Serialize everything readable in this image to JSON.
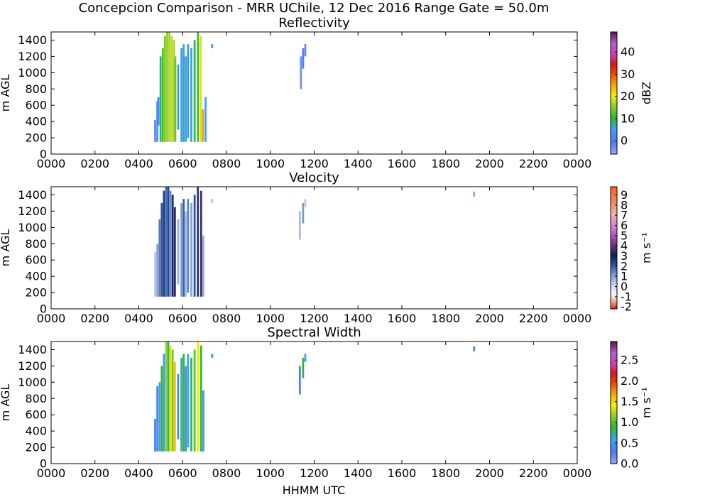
{
  "title": "Concepcion Comparison - MRR UChile, 12 Dec 2016 Range Gate = 50.0m",
  "xlabel": "HHMM UTC",
  "chart_data": [
    {
      "type": "heatmap",
      "title": "Reflectivity",
      "ylabel": "m AGL",
      "xticks": [
        "0000",
        "0200",
        "0400",
        "0600",
        "0800",
        "1000",
        "1200",
        "1400",
        "1600",
        "1800",
        "2000",
        "2200",
        "0000"
      ],
      "yticks": [
        "0",
        "200",
        "400",
        "600",
        "800",
        "1000",
        "1200",
        "1400"
      ],
      "xlim_hours": [
        0,
        24
      ],
      "ylim": [
        0,
        1500
      ],
      "colorbar": {
        "label": "dBZ",
        "range": [
          -6,
          49
        ],
        "ticks": [
          "0",
          "10",
          "20",
          "30",
          "40"
        ],
        "tick_values": [
          0,
          10,
          20,
          30,
          40
        ]
      },
      "cells": [
        {
          "t": 4.7,
          "z0": 150,
          "z1": 420,
          "v": -2
        },
        {
          "t": 4.8,
          "z0": 150,
          "z1": 650,
          "v": 3
        },
        {
          "t": 4.85,
          "z0": 350,
          "z1": 700,
          "v": -1
        },
        {
          "t": 4.95,
          "z0": 150,
          "z1": 1200,
          "v": 8
        },
        {
          "t": 5.05,
          "z0": 150,
          "z1": 1300,
          "v": 12
        },
        {
          "t": 5.15,
          "z0": 150,
          "z1": 1450,
          "v": 15
        },
        {
          "t": 5.25,
          "z0": 150,
          "z1": 1500,
          "v": 16
        },
        {
          "t": 5.35,
          "z0": 150,
          "z1": 1500,
          "v": 17
        },
        {
          "t": 5.45,
          "z0": 150,
          "z1": 1450,
          "v": 18
        },
        {
          "t": 5.55,
          "z0": 150,
          "z1": 1400,
          "v": 17
        },
        {
          "t": 5.62,
          "z0": 150,
          "z1": 1200,
          "v": 14
        },
        {
          "t": 5.75,
          "z0": 300,
          "z1": 1100,
          "v": 6
        },
        {
          "t": 5.9,
          "z0": 150,
          "z1": 1300,
          "v": 4
        },
        {
          "t": 6.0,
          "z0": 150,
          "z1": 1350,
          "v": 7
        },
        {
          "t": 6.1,
          "z0": 150,
          "z1": 1200,
          "v": 5
        },
        {
          "t": 6.2,
          "z0": 200,
          "z1": 1350,
          "v": 3
        },
        {
          "t": 6.35,
          "z0": 150,
          "z1": 1300,
          "v": 6
        },
        {
          "t": 6.5,
          "z0": 150,
          "z1": 1400,
          "v": 9
        },
        {
          "t": 6.65,
          "z0": 150,
          "z1": 1500,
          "v": 12
        },
        {
          "t": 6.78,
          "z0": 150,
          "z1": 1450,
          "v": 19
        },
        {
          "t": 6.88,
          "z0": 150,
          "z1": 550,
          "v": 26
        },
        {
          "t": 7.0,
          "z0": 150,
          "z1": 700,
          "v": 5
        },
        {
          "t": 7.3,
          "z0": 1300,
          "z1": 1350,
          "v": 2
        },
        {
          "t": 11.35,
          "z0": 800,
          "z1": 1200,
          "v": -3
        },
        {
          "t": 11.45,
          "z0": 1050,
          "z1": 1300,
          "v": 0
        },
        {
          "t": 11.55,
          "z0": 1200,
          "z1": 1350,
          "v": -2
        }
      ]
    },
    {
      "type": "heatmap",
      "title": "Velocity",
      "ylabel": "m AGL",
      "xticks": [
        "0000",
        "0200",
        "0400",
        "0600",
        "0800",
        "1000",
        "1200",
        "1400",
        "1600",
        "1800",
        "2000",
        "2200",
        "0000"
      ],
      "yticks": [
        "0",
        "200",
        "400",
        "600",
        "800",
        "1000",
        "1200",
        "1400"
      ],
      "xlim_hours": [
        0,
        24
      ],
      "ylim": [
        0,
        1500
      ],
      "colorbar": {
        "label": "m s⁻¹",
        "range": [
          -2.2,
          9.8
        ],
        "ticks": [
          "-2",
          "-1",
          "0",
          "1",
          "2",
          "3",
          "4",
          "5",
          "6",
          "7",
          "8",
          "9"
        ],
        "tick_values": [
          -2,
          -1,
          0,
          1,
          2,
          3,
          4,
          5,
          6,
          7,
          8,
          9
        ]
      },
      "cells": [
        {
          "t": 4.7,
          "z0": 150,
          "z1": 700,
          "v": 0.4
        },
        {
          "t": 4.8,
          "z0": 150,
          "z1": 800,
          "v": 1.0
        },
        {
          "t": 4.9,
          "z0": 150,
          "z1": 1100,
          "v": 1.6
        },
        {
          "t": 5.0,
          "z0": 150,
          "z1": 1300,
          "v": 2.2
        },
        {
          "t": 5.1,
          "z0": 150,
          "z1": 1450,
          "v": 2.6
        },
        {
          "t": 5.2,
          "z0": 150,
          "z1": 1500,
          "v": 1.8
        },
        {
          "t": 5.3,
          "z0": 150,
          "z1": 1500,
          "v": 2.4
        },
        {
          "t": 5.4,
          "z0": 150,
          "z1": 1450,
          "v": 1.4
        },
        {
          "t": 5.5,
          "z0": 150,
          "z1": 1400,
          "v": 2.8
        },
        {
          "t": 5.6,
          "z0": 150,
          "z1": 1250,
          "v": 3.4
        },
        {
          "t": 5.75,
          "z0": 300,
          "z1": 1100,
          "v": 0.8
        },
        {
          "t": 5.9,
          "z0": 150,
          "z1": 1300,
          "v": 1.2
        },
        {
          "t": 6.0,
          "z0": 150,
          "z1": 1350,
          "v": 2.0
        },
        {
          "t": 6.1,
          "z0": 150,
          "z1": 1200,
          "v": 0.6
        },
        {
          "t": 6.2,
          "z0": 200,
          "z1": 1350,
          "v": 1.5
        },
        {
          "t": 6.35,
          "z0": 150,
          "z1": 1300,
          "v": 1.0
        },
        {
          "t": 6.5,
          "z0": 150,
          "z1": 1400,
          "v": 2.2
        },
        {
          "t": 6.65,
          "z0": 150,
          "z1": 1500,
          "v": 2.6
        },
        {
          "t": 6.8,
          "z0": 150,
          "z1": 1450,
          "v": 3.6
        },
        {
          "t": 6.9,
          "z0": 150,
          "z1": 900,
          "v": 0.8
        },
        {
          "t": 7.3,
          "z0": 1300,
          "z1": 1350,
          "v": 0.5
        },
        {
          "t": 11.3,
          "z0": 850,
          "z1": 1200,
          "v": 0.6
        },
        {
          "t": 11.45,
          "z0": 1050,
          "z1": 1300,
          "v": 1.2
        },
        {
          "t": 11.55,
          "z0": 1250,
          "z1": 1350,
          "v": 0.3
        },
        {
          "t": 19.25,
          "z0": 1380,
          "z1": 1440,
          "v": 1.0
        }
      ]
    },
    {
      "type": "heatmap",
      "title": "Spectral Width",
      "ylabel": "m AGL",
      "xticks": [
        "0000",
        "0200",
        "0400",
        "0600",
        "0800",
        "1000",
        "1200",
        "1400",
        "1600",
        "1800",
        "2000",
        "2200",
        "0000"
      ],
      "yticks": [
        "0",
        "200",
        "400",
        "600",
        "800",
        "1000",
        "1200",
        "1400"
      ],
      "xlim_hours": [
        0,
        24
      ],
      "ylim": [
        0,
        1500
      ],
      "colorbar": {
        "label": "m s⁻¹",
        "range": [
          0,
          2.95
        ],
        "ticks": [
          "0.0",
          "0.5",
          "1.0",
          "1.5",
          "2.0",
          "2.5"
        ],
        "tick_values": [
          0,
          0.5,
          1.0,
          1.5,
          2.0,
          2.5
        ]
      },
      "cells": [
        {
          "t": 4.7,
          "z0": 150,
          "z1": 550,
          "v": 0.3
        },
        {
          "t": 4.8,
          "z0": 150,
          "z1": 950,
          "v": 0.4
        },
        {
          "t": 4.9,
          "z0": 150,
          "z1": 1000,
          "v": 0.6
        },
        {
          "t": 5.0,
          "z0": 150,
          "z1": 1200,
          "v": 0.9
        },
        {
          "t": 5.1,
          "z0": 150,
          "z1": 1350,
          "v": 0.5
        },
        {
          "t": 5.2,
          "z0": 150,
          "z1": 1500,
          "v": 1.2
        },
        {
          "t": 5.3,
          "z0": 150,
          "z1": 1500,
          "v": 0.8
        },
        {
          "t": 5.4,
          "z0": 150,
          "z1": 1450,
          "v": 1.5
        },
        {
          "t": 5.5,
          "z0": 150,
          "z1": 1400,
          "v": 1.1
        },
        {
          "t": 5.6,
          "z0": 150,
          "z1": 1250,
          "v": 1.6
        },
        {
          "t": 5.75,
          "z0": 300,
          "z1": 1100,
          "v": 0.4
        },
        {
          "t": 5.9,
          "z0": 150,
          "z1": 1300,
          "v": 0.7
        },
        {
          "t": 6.0,
          "z0": 150,
          "z1": 1350,
          "v": 0.9
        },
        {
          "t": 6.1,
          "z0": 150,
          "z1": 1200,
          "v": 0.4
        },
        {
          "t": 6.2,
          "z0": 200,
          "z1": 1350,
          "v": 0.6
        },
        {
          "t": 6.35,
          "z0": 150,
          "z1": 1300,
          "v": 0.8
        },
        {
          "t": 6.5,
          "z0": 150,
          "z1": 1400,
          "v": 1.0
        },
        {
          "t": 6.65,
          "z0": 150,
          "z1": 1500,
          "v": 1.4
        },
        {
          "t": 6.8,
          "z0": 150,
          "z1": 1450,
          "v": 0.9
        },
        {
          "t": 6.9,
          "z0": 150,
          "z1": 900,
          "v": 0.5
        },
        {
          "t": 7.3,
          "z0": 1300,
          "z1": 1350,
          "v": 0.8
        },
        {
          "t": 11.3,
          "z0": 850,
          "z1": 1200,
          "v": 0.3
        },
        {
          "t": 11.45,
          "z0": 1050,
          "z1": 1300,
          "v": 0.9
        },
        {
          "t": 11.55,
          "z0": 1250,
          "z1": 1350,
          "v": 0.6
        },
        {
          "t": 19.25,
          "z0": 1380,
          "z1": 1440,
          "v": 0.3
        }
      ]
    }
  ]
}
